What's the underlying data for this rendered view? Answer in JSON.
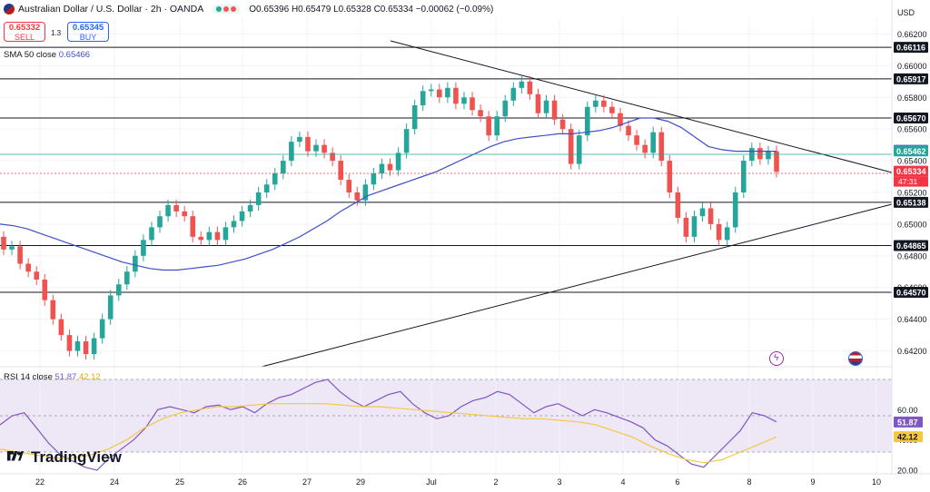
{
  "header": {
    "symbol": "Australian Dollar / U.S. Dollar · 2h · OANDA",
    "ohlc": "O0.65396 H0.65479 L0.65328 C0.65334 −0.00062 (−0.09%)",
    "sell_price": "0.65332",
    "sell_label": "SELL",
    "buy_price": "0.65345",
    "buy_label": "BUY",
    "spread": "1.3",
    "currency": "USD"
  },
  "indicators": {
    "sma_label": "SMA 50 close",
    "sma_value": "0.65466",
    "rsi_label": "RSI 14 close",
    "rsi_value": "51.87",
    "rsi_ma_value": "42.12"
  },
  "branding": {
    "logo_text": "TradingView"
  },
  "colors": {
    "up": "#26a69a",
    "down": "#ef5350",
    "sma": "#3e4ec9",
    "rsi": "#7e57c2",
    "rsi_ma": "#f5c842",
    "price_tag": "#f23645"
  },
  "chart_data": [
    {
      "type": "candlestick",
      "title": "Australian Dollar / U.S. Dollar · 2h · OANDA",
      "ylim": [
        0.641,
        0.663
      ],
      "y_ticks": [
        "0.66200",
        "0.66000",
        "0.65800",
        "0.65600",
        "0.65400",
        "0.65200",
        "0.65000",
        "0.64800",
        "0.64600",
        "0.64400",
        "0.64200"
      ],
      "x_ticks": [
        "22",
        "24",
        "25",
        "26",
        "27",
        "29",
        "Jul",
        "2",
        "3",
        "4",
        "6",
        "8",
        "9",
        "10"
      ],
      "horizontal_levels": [
        "0.66116",
        "0.65917",
        "0.65670",
        "0.65138",
        "0.64865",
        "0.64570"
      ],
      "price_labels": {
        "sma": "0.65466",
        "last_green": "0.65462",
        "current": "0.65334",
        "countdown": "47:31"
      },
      "series": [
        {
          "name": "SMA 50 close",
          "values": [
            0.65,
            0.6499,
            0.6497,
            0.6494,
            0.6491,
            0.6488,
            0.6485,
            0.6482,
            0.6479,
            0.6476,
            0.6474,
            0.6472,
            0.6471,
            0.6471,
            0.6472,
            0.6473,
            0.6474,
            0.6476,
            0.6478,
            0.6481,
            0.6484,
            0.6488,
            0.6492,
            0.6497,
            0.6502,
            0.6508,
            0.6513,
            0.6518,
            0.6521,
            0.6524,
            0.6527,
            0.653,
            0.6533,
            0.6537,
            0.6541,
            0.6545,
            0.6549,
            0.6552,
            0.6554,
            0.6555,
            0.6556,
            0.6557,
            0.6557,
            0.6558,
            0.6559,
            0.6561,
            0.6564,
            0.6567,
            0.6567,
            0.6565,
            0.6561,
            0.6555,
            0.6549,
            0.6547,
            0.6546,
            0.6546,
            0.6546,
            0.6546
          ]
        },
        {
          "name": "RSI 14 close",
          "values": [
            50,
            56,
            58,
            48,
            38,
            30,
            26,
            22,
            20,
            28,
            34,
            40,
            48,
            60,
            62,
            60,
            58,
            62,
            63,
            60,
            62,
            58,
            64,
            68,
            70,
            74,
            78,
            80,
            72,
            66,
            62,
            66,
            70,
            72,
            64,
            58,
            54,
            56,
            62,
            66,
            68,
            72,
            70,
            64,
            58,
            62,
            64,
            60,
            56,
            60,
            58,
            55,
            52,
            48,
            40,
            36,
            30,
            24,
            22,
            30,
            38,
            46,
            58,
            56,
            52
          ],
          "display_value": "51.87"
        },
        {
          "name": "RSI MA",
          "values": [
            34,
            32,
            30,
            28,
            28,
            30,
            34,
            40,
            48,
            54,
            58,
            60,
            62,
            62,
            63,
            64,
            64,
            64,
            64,
            63,
            62,
            62,
            61,
            60,
            59,
            58,
            57,
            56,
            55,
            54,
            54,
            53,
            52,
            50,
            46,
            42,
            36,
            31,
            27,
            25,
            27,
            32,
            37,
            42
          ],
          "display_value": "42.12"
        }
      ],
      "rsi_ylim": [
        20,
        80
      ],
      "rsi_ticks": [
        "60.00",
        "40.00",
        "20.00"
      ]
    }
  ]
}
